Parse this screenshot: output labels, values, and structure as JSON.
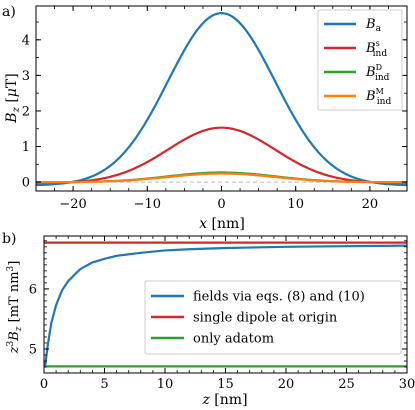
{
  "chart_data": [
    {
      "panel_label": "a)",
      "type": "line",
      "xlabel": "x [nm]",
      "ylabel": "B_z [μT]",
      "xlim": [
        -25,
        25
      ],
      "ylim": [
        -0.25,
        4.95
      ],
      "xticks": [
        -20,
        -10,
        0,
        10,
        20
      ],
      "xtick_labels": [
        "−20",
        "−10",
        "0",
        "10",
        "20"
      ],
      "yticks": [
        0,
        1,
        2,
        3,
        4
      ],
      "ytick_labels": [
        "0",
        "1",
        "2",
        "3",
        "4"
      ],
      "grid": false,
      "legend_position": "top-right",
      "reference_line": {
        "y": 0,
        "style": "dashed",
        "color": "#bbbbbb"
      },
      "series": [
        {
          "name": "B_a",
          "legend_base": "B",
          "legend_sub": "a",
          "legend_sup": "",
          "color": "#1f77b4",
          "amplitude": 4.75,
          "width": 7.2,
          "offset": -0.095
        },
        {
          "name": "B_ind^s",
          "legend_base": "B",
          "legend_sub": "ind",
          "legend_sup": "s",
          "color": "#d62728",
          "amplitude": 1.53,
          "width": 7.2,
          "offset": -0.03
        },
        {
          "name": "B_ind^D",
          "legend_base": "B",
          "legend_sub": "ind",
          "legend_sup": "D",
          "color": "#2ca02c",
          "amplitude": 0.27,
          "width": 7.2,
          "offset": -0.005
        },
        {
          "name": "B_ind^M",
          "legend_base": "B",
          "legend_sub": "ind",
          "legend_sup": "M",
          "color": "#ff7f0e",
          "amplitude": 0.24,
          "width": 7.2,
          "offset": -0.005
        }
      ],
      "x": [
        -25,
        -22.5,
        -20,
        -17.5,
        -15,
        -12.5,
        -10,
        -7.5,
        -5,
        -2.5,
        0,
        2.5,
        5,
        7.5,
        10,
        12.5,
        15,
        17.5,
        20,
        22.5,
        25
      ]
    },
    {
      "panel_label": "b)",
      "type": "line",
      "xlabel": "z [nm]",
      "ylabel": "z^3 B_z [mT nm^3]",
      "xlim": [
        0,
        30
      ],
      "ylim": [
        4.6,
        6.88
      ],
      "xticks": [
        0,
        5,
        10,
        15,
        20,
        25,
        30
      ],
      "xtick_labels": [
        "0",
        "5",
        "10",
        "15",
        "20",
        "25",
        "30"
      ],
      "yticks": [
        5,
        6
      ],
      "ytick_labels": [
        "5",
        "6"
      ],
      "grid": false,
      "legend_position": "lower-right",
      "series": [
        {
          "name": "fields via eqs. (8) and (10)",
          "color": "#1f77b4",
          "kind": "saturating",
          "x": [
            0.1,
            0.3,
            0.6,
            1,
            1.5,
            2,
            3,
            4,
            5,
            6,
            8,
            10,
            12,
            15,
            20,
            25,
            30
          ],
          "y": [
            4.72,
            5.05,
            5.43,
            5.73,
            5.98,
            6.13,
            6.33,
            6.44,
            6.5,
            6.55,
            6.6,
            6.64,
            6.66,
            6.68,
            6.7,
            6.71,
            6.72
          ]
        },
        {
          "name": "single dipole at origin",
          "color": "#d62728",
          "kind": "constant",
          "x": [
            0,
            30
          ],
          "y": [
            6.77,
            6.77
          ]
        },
        {
          "name": "only adatom",
          "color": "#2ca02c",
          "kind": "constant",
          "x": [
            0,
            30
          ],
          "y": [
            4.71,
            4.71
          ]
        }
      ]
    }
  ]
}
